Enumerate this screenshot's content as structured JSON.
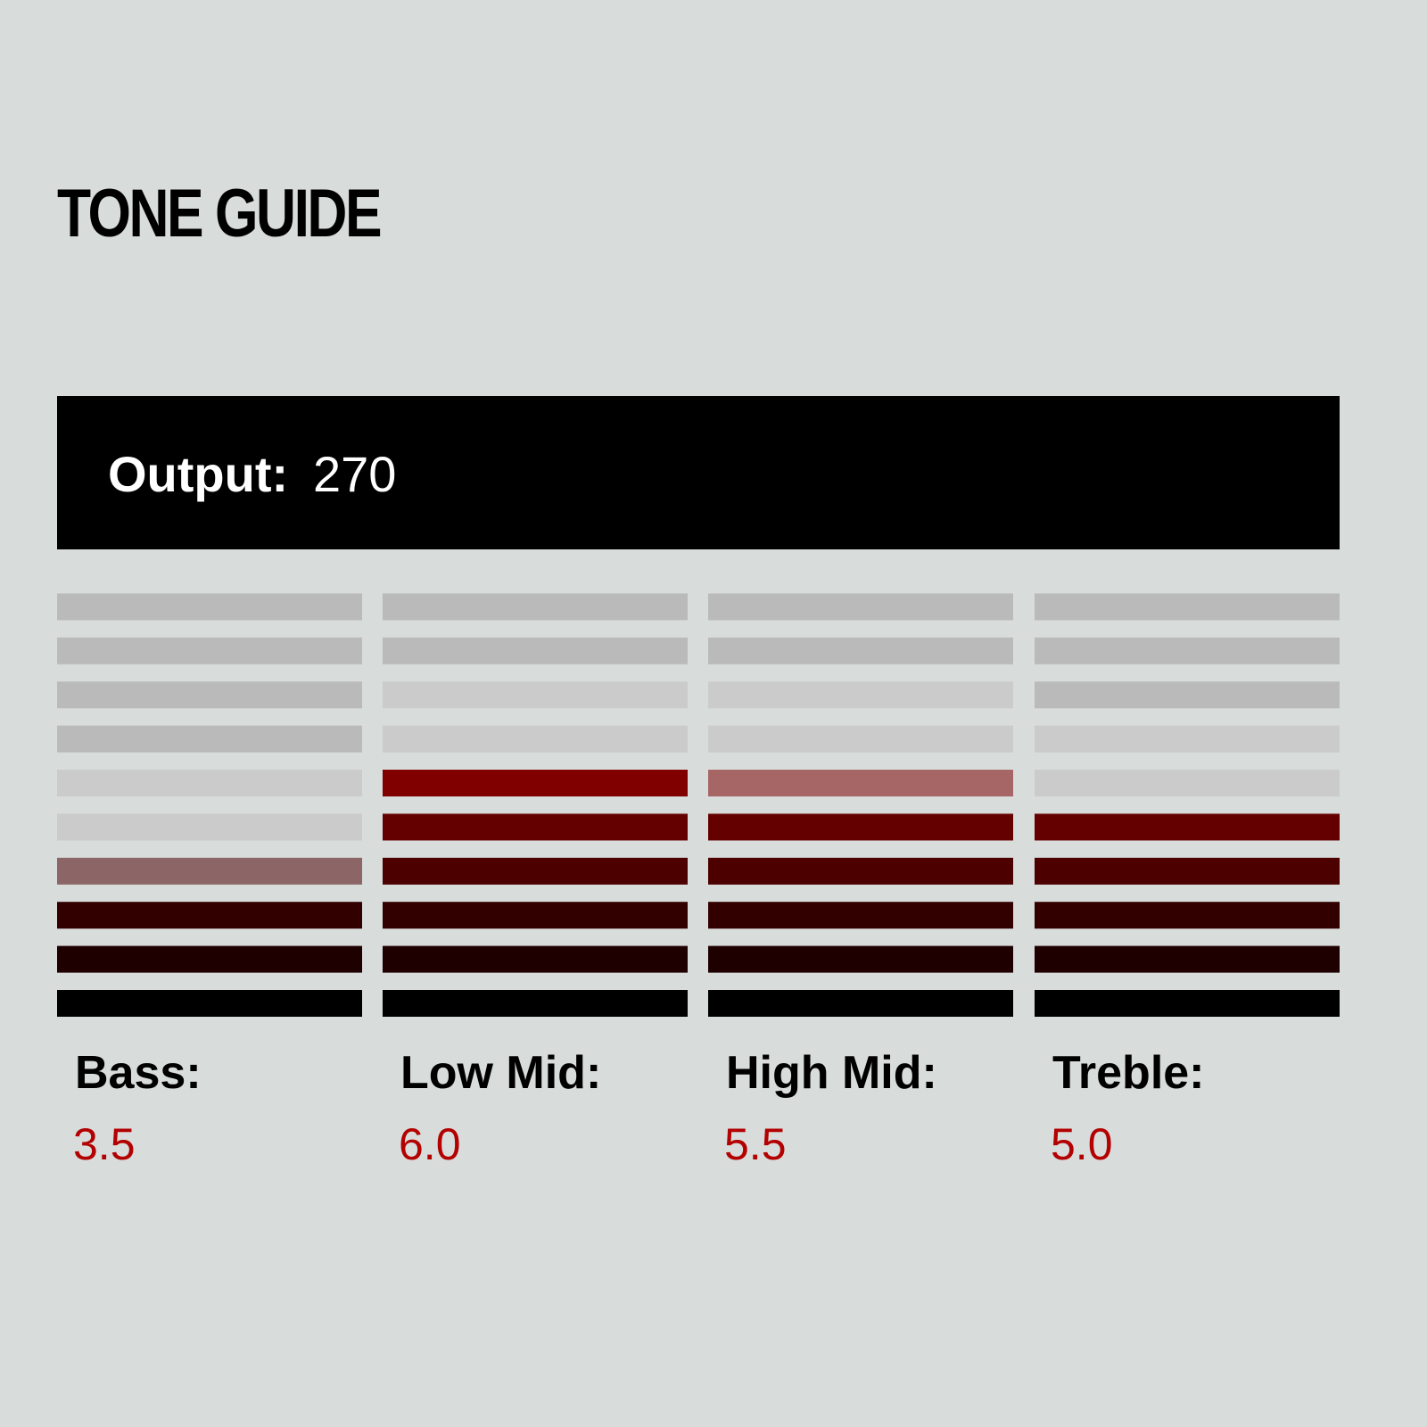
{
  "header": {
    "title": "TONE GUIDE"
  },
  "output": {
    "label": "Output:",
    "value": 270
  },
  "bands": [
    {
      "label": "Bass:",
      "value": 3.5
    },
    {
      "label": "Low Mid:",
      "value": 6,
      "value_label": "6.0"
    },
    {
      "label": "High Mid:",
      "value": 5.5
    },
    {
      "label": "Treble:",
      "value": 5,
      "value_label": "5.0"
    }
  ],
  "colors": {
    "segments": [
      "#000000",
      "#1f0000",
      "#330000",
      "#4d0000",
      "#640000",
      "#800000",
      "#990000",
      "#b30000",
      "#cc0000",
      "#e60000"
    ],
    "off_near": "#cbcbcb",
    "off_far": "#bababa",
    "value_text": "#b30000"
  }
}
